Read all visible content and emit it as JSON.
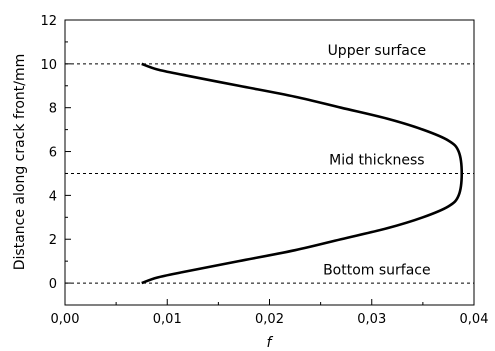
{
  "chart_data": {
    "type": "line",
    "xlabel": "f",
    "ylabel": "Distance along crack front/mm",
    "xlim": [
      0.0,
      0.04
    ],
    "ylim": [
      -1,
      12
    ],
    "xticks": [
      0.0,
      0.01,
      0.02,
      0.03,
      0.04
    ],
    "xtick_labels": [
      "0,00",
      "0,01",
      "0,02",
      "0,03",
      "0,04"
    ],
    "yticks": [
      0,
      2,
      4,
      6,
      8,
      10,
      12
    ],
    "ytick_labels": [
      "0",
      "2",
      "4",
      "6",
      "8",
      "10",
      "12"
    ],
    "grid": false,
    "legend": "none",
    "series": [
      {
        "color": "#000000",
        "x": [
          0.0075,
          0.009,
          0.0115,
          0.017,
          0.0225,
          0.027,
          0.0315,
          0.035,
          0.0375,
          0.0385,
          0.0388,
          0.0385,
          0.0375,
          0.035,
          0.0315,
          0.027,
          0.0225,
          0.017,
          0.0115,
          0.009,
          0.0075
        ],
        "y": [
          0,
          0.25,
          0.5,
          1.0,
          1.5,
          2.0,
          2.5,
          3.0,
          3.5,
          4.0,
          5.0,
          6.0,
          6.5,
          7.0,
          7.5,
          8.0,
          8.5,
          9.0,
          9.5,
          9.75,
          10
        ]
      }
    ],
    "reference_lines": [
      {
        "y": 10,
        "style": "dashed"
      },
      {
        "y": 5,
        "style": "dashed"
      },
      {
        "y": 0,
        "style": "dashed"
      }
    ],
    "annotations": [
      {
        "text": "Upper surface",
        "x": 0.0305,
        "y": 10.4
      },
      {
        "text": "Mid thickness",
        "x": 0.0305,
        "y": 5.4
      },
      {
        "text": "Bottom surface",
        "x": 0.0305,
        "y": 0.4
      }
    ]
  }
}
